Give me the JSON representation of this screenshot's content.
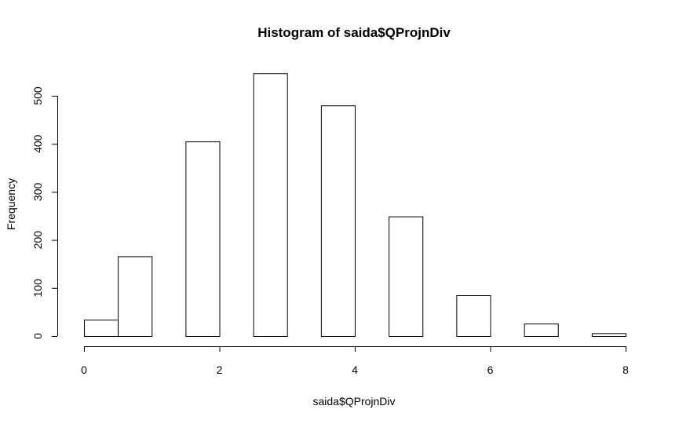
{
  "chart_data": {
    "type": "bar",
    "title": "Histogram of saida$QProjnDiv",
    "xlabel": "saida$QProjnDiv",
    "ylabel": "Frequency",
    "xlim": [
      0,
      8
    ],
    "ylim": [
      0,
      550
    ],
    "grid": false,
    "x_ticks": [
      0,
      2,
      4,
      6,
      8
    ],
    "y_ticks": [
      0,
      100,
      200,
      300,
      400,
      500
    ],
    "bins": [
      {
        "x0": 0.0,
        "x1": 0.5,
        "count": 34
      },
      {
        "x0": 0.5,
        "x1": 1.0,
        "count": 166
      },
      {
        "x0": 1.0,
        "x1": 1.5,
        "count": 0
      },
      {
        "x0": 1.5,
        "x1": 2.0,
        "count": 405
      },
      {
        "x0": 2.0,
        "x1": 2.5,
        "count": 0
      },
      {
        "x0": 2.5,
        "x1": 3.0,
        "count": 547
      },
      {
        "x0": 3.0,
        "x1": 3.5,
        "count": 0
      },
      {
        "x0": 3.5,
        "x1": 4.0,
        "count": 480
      },
      {
        "x0": 4.0,
        "x1": 4.5,
        "count": 0
      },
      {
        "x0": 4.5,
        "x1": 5.0,
        "count": 249
      },
      {
        "x0": 5.0,
        "x1": 5.5,
        "count": 0
      },
      {
        "x0": 5.5,
        "x1": 6.0,
        "count": 85
      },
      {
        "x0": 6.0,
        "x1": 6.5,
        "count": 0
      },
      {
        "x0": 6.5,
        "x1": 7.0,
        "count": 26
      },
      {
        "x0": 7.0,
        "x1": 7.5,
        "count": 0
      },
      {
        "x0": 7.5,
        "x1": 8.0,
        "count": 6
      }
    ]
  }
}
